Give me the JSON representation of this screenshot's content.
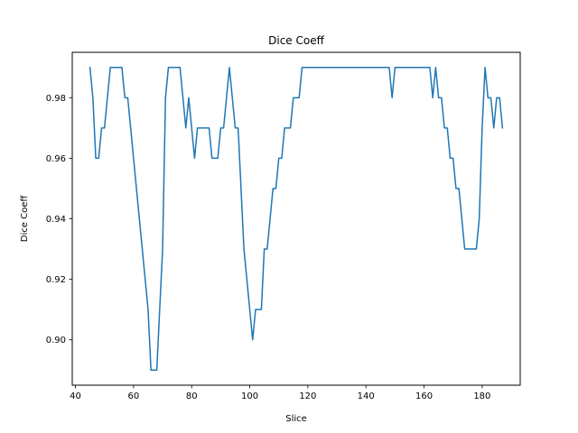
{
  "chart_data": {
    "type": "line",
    "title": "Dice Coeff",
    "xlabel": "Slice",
    "ylabel": "Dice Coeff",
    "xlim": [
      38.9,
      193.1
    ],
    "ylim": [
      0.885,
      0.995
    ],
    "xticks": [
      40,
      60,
      80,
      100,
      120,
      140,
      160,
      180
    ],
    "yticks": [
      0.9,
      0.92,
      0.94,
      0.96,
      0.98
    ],
    "xtick_labels": [
      "40",
      "60",
      "80",
      "100",
      "120",
      "140",
      "160",
      "180"
    ],
    "ytick_labels": [
      "0.90",
      "0.92",
      "0.94",
      "0.96",
      "0.98"
    ],
    "grid": false,
    "series": [
      {
        "color": "#1f77b4",
        "points": [
          [
            45,
            0.99
          ],
          [
            46,
            0.98
          ],
          [
            47,
            0.96
          ],
          [
            48,
            0.96
          ],
          [
            49,
            0.97
          ],
          [
            50,
            0.97
          ],
          [
            51,
            0.98
          ],
          [
            52,
            0.99
          ],
          [
            53,
            0.99
          ],
          [
            54,
            0.99
          ],
          [
            55,
            0.99
          ],
          [
            56,
            0.99
          ],
          [
            57,
            0.98
          ],
          [
            58,
            0.98
          ],
          [
            59,
            0.97
          ],
          [
            60,
            0.96
          ],
          [
            61,
            0.95
          ],
          [
            62,
            0.94
          ],
          [
            63,
            0.93
          ],
          [
            64,
            0.92
          ],
          [
            65,
            0.91
          ],
          [
            66,
            0.89
          ],
          [
            67,
            0.89
          ],
          [
            68,
            0.89
          ],
          [
            69,
            0.91
          ],
          [
            70,
            0.93
          ],
          [
            71,
            0.98
          ],
          [
            72,
            0.99
          ],
          [
            73,
            0.99
          ],
          [
            74,
            0.99
          ],
          [
            75,
            0.99
          ],
          [
            76,
            0.99
          ],
          [
            77,
            0.98
          ],
          [
            78,
            0.97
          ],
          [
            79,
            0.98
          ],
          [
            80,
            0.97
          ],
          [
            81,
            0.96
          ],
          [
            82,
            0.97
          ],
          [
            83,
            0.97
          ],
          [
            84,
            0.97
          ],
          [
            85,
            0.97
          ],
          [
            86,
            0.97
          ],
          [
            87,
            0.96
          ],
          [
            88,
            0.96
          ],
          [
            89,
            0.96
          ],
          [
            90,
            0.97
          ],
          [
            91,
            0.97
          ],
          [
            92,
            0.98
          ],
          [
            93,
            0.99
          ],
          [
            94,
            0.98
          ],
          [
            95,
            0.97
          ],
          [
            96,
            0.97
          ],
          [
            97,
            0.95
          ],
          [
            98,
            0.93
          ],
          [
            99,
            0.92
          ],
          [
            100,
            0.91
          ],
          [
            101,
            0.9
          ],
          [
            102,
            0.91
          ],
          [
            103,
            0.91
          ],
          [
            104,
            0.91
          ],
          [
            105,
            0.93
          ],
          [
            106,
            0.93
          ],
          [
            107,
            0.94
          ],
          [
            108,
            0.95
          ],
          [
            109,
            0.95
          ],
          [
            110,
            0.96
          ],
          [
            111,
            0.96
          ],
          [
            112,
            0.97
          ],
          [
            113,
            0.97
          ],
          [
            114,
            0.97
          ],
          [
            115,
            0.98
          ],
          [
            116,
            0.98
          ],
          [
            117,
            0.98
          ],
          [
            118,
            0.99
          ],
          [
            148,
            0.99
          ],
          [
            149,
            0.98
          ],
          [
            150,
            0.99
          ],
          [
            162,
            0.99
          ],
          [
            163,
            0.98
          ],
          [
            164,
            0.99
          ],
          [
            165,
            0.98
          ],
          [
            166,
            0.98
          ],
          [
            167,
            0.97
          ],
          [
            168,
            0.97
          ],
          [
            169,
            0.96
          ],
          [
            170,
            0.96
          ],
          [
            171,
            0.95
          ],
          [
            172,
            0.95
          ],
          [
            173,
            0.94
          ],
          [
            174,
            0.93
          ],
          [
            175,
            0.93
          ],
          [
            176,
            0.93
          ],
          [
            177,
            0.93
          ],
          [
            178,
            0.93
          ],
          [
            179,
            0.94
          ],
          [
            180,
            0.97
          ],
          [
            181,
            0.99
          ],
          [
            182,
            0.98
          ],
          [
            183,
            0.98
          ],
          [
            184,
            0.97
          ],
          [
            185,
            0.98
          ],
          [
            186,
            0.98
          ],
          [
            187,
            0.97
          ]
        ]
      }
    ]
  }
}
